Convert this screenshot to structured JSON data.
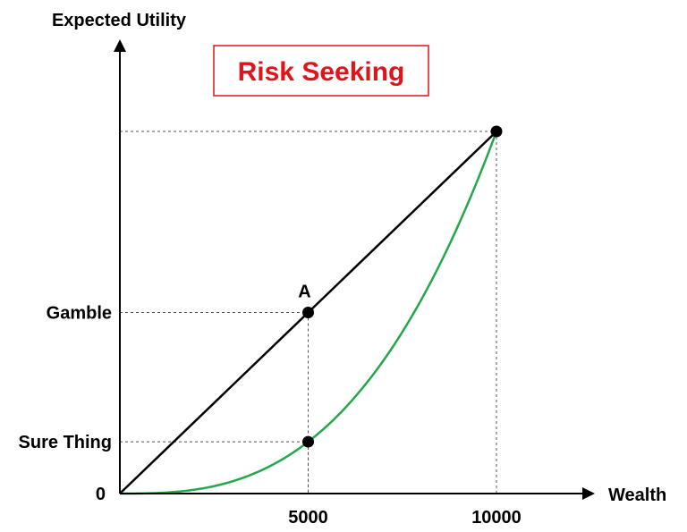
{
  "chart_data": {
    "type": "line",
    "title": "Risk Seeking",
    "xlabel": "Wealth",
    "ylabel": "Expected Utility",
    "xlim": [
      0,
      12000
    ],
    "ylim": [
      0,
      1.12
    ],
    "x_ticks": [
      {
        "value": 5000,
        "label": "5000"
      },
      {
        "value": 10000,
        "label": "10000"
      }
    ],
    "y_ticks": [
      {
        "value": 0,
        "label": "0"
      },
      {
        "value": 0.143,
        "label": "Sure Thing"
      },
      {
        "value": 0.5,
        "label": "Gamble"
      }
    ],
    "series": [
      {
        "style": "straight",
        "color": "#000000",
        "x": [
          0,
          10000
        ],
        "y": [
          0,
          1
        ]
      },
      {
        "style": "convex",
        "color": "#22a84a",
        "x": [
          0,
          5000,
          10000
        ],
        "y": [
          0,
          0.143,
          1
        ]
      }
    ],
    "points": [
      {
        "x": 5000,
        "y": 0.5,
        "label": "A"
      },
      {
        "x": 5000,
        "y": 0.143,
        "label": ""
      },
      {
        "x": 10000,
        "y": 1,
        "label": ""
      }
    ],
    "guides": [
      {
        "x": 5000,
        "y": 0.5
      },
      {
        "x": 5000,
        "y": 0.143
      },
      {
        "x": 10000,
        "y": 1
      }
    ],
    "colors": {
      "title": "#e0141b",
      "title_border": "#e0141b",
      "axes": "#000000",
      "guide": "#555555"
    }
  }
}
